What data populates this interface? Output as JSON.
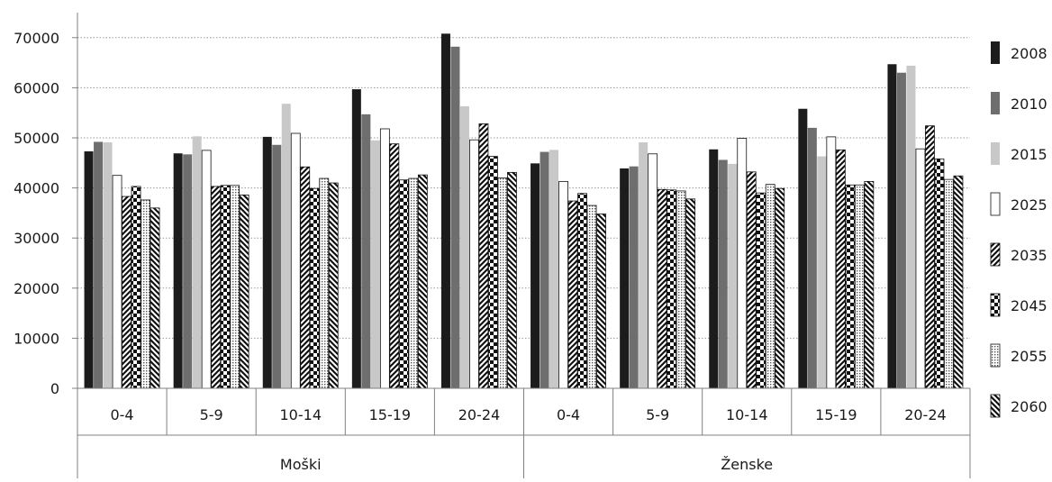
{
  "chart_data": {
    "type": "bar",
    "title": "",
    "xlabel": "",
    "ylabel": "",
    "ylim": [
      0,
      75000
    ],
    "y_ticks": [
      0,
      10000,
      20000,
      30000,
      40000,
      50000,
      60000,
      70000
    ],
    "grid": "horizontal dotted",
    "legend_position": "right",
    "groups": [
      "Moški",
      "Ženske"
    ],
    "categories": [
      "0-4",
      "5-9",
      "10-14",
      "15-19",
      "20-24",
      "0-4",
      "5-9",
      "10-14",
      "15-19",
      "20-24"
    ],
    "series": [
      {
        "name": "2008",
        "pattern": "solid-black",
        "values": [
          47300,
          46900,
          50200,
          59700,
          70800,
          44900,
          43900,
          47700,
          55800,
          64700
        ]
      },
      {
        "name": "2010",
        "pattern": "solid-darkgray",
        "values": [
          49200,
          46700,
          48600,
          54700,
          68200,
          47200,
          44300,
          45600,
          52000,
          63000
        ]
      },
      {
        "name": "2015",
        "pattern": "solid-lightgray",
        "values": [
          49100,
          50300,
          56800,
          49500,
          56300,
          47600,
          49100,
          44800,
          46300,
          64400
        ]
      },
      {
        "name": "2025",
        "pattern": "white-outline",
        "values": [
          42500,
          47500,
          50900,
          51800,
          49600,
          41300,
          46800,
          49900,
          50200,
          47800
        ]
      },
      {
        "name": "2035",
        "pattern": "diagonal-stripes-right",
        "values": [
          38300,
          40300,
          44200,
          48800,
          52800,
          37400,
          39700,
          43200,
          47600,
          52400
        ]
      },
      {
        "name": "2045",
        "pattern": "checker",
        "values": [
          40300,
          40500,
          39900,
          41600,
          46300,
          38900,
          39600,
          39000,
          40600,
          45800
        ]
      },
      {
        "name": "2055",
        "pattern": "dotted-light",
        "values": [
          37600,
          40500,
          41900,
          41900,
          42000,
          36500,
          39400,
          40700,
          40600,
          41700
        ]
      },
      {
        "name": "2060",
        "pattern": "diagonal-stripes-left",
        "values": [
          36000,
          38600,
          41000,
          42600,
          43100,
          34800,
          37800,
          39900,
          41300,
          42400
        ]
      }
    ]
  },
  "colors": {
    "solid_black": "#1c1c1c",
    "solid_darkgray": "#6e6e6e",
    "solid_lightgray": "#c8c8c8",
    "grid": "#9a9a9a",
    "axis": "#808080"
  }
}
